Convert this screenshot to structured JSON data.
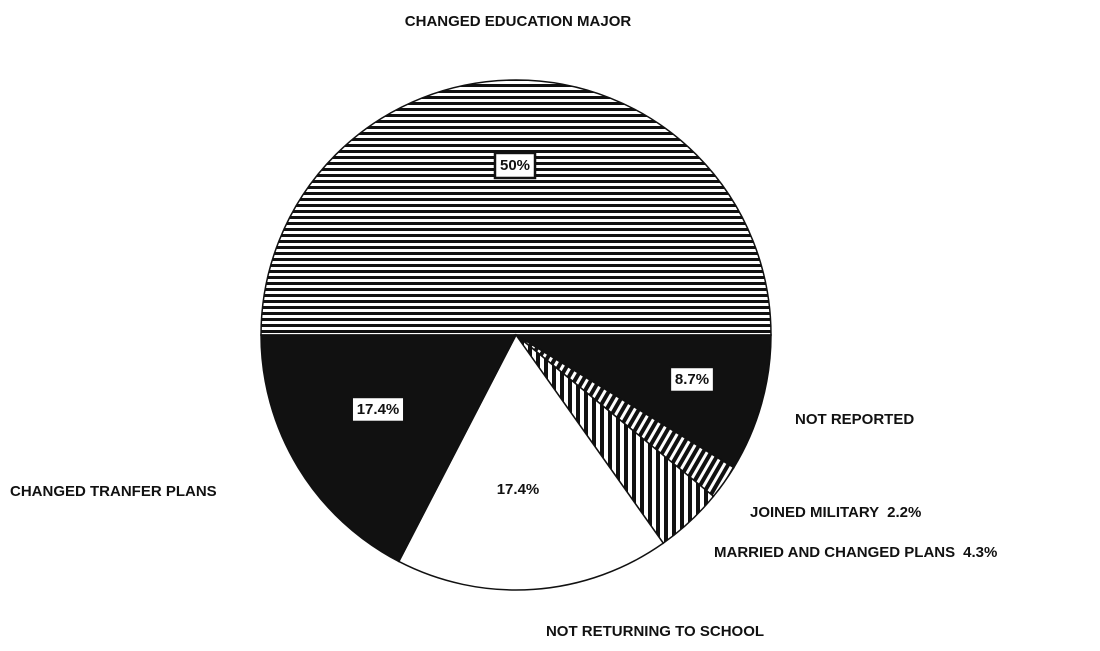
{
  "chart_data": {
    "type": "pie",
    "categories": [
      "CHANGED EDUCATION MAJOR",
      "NOT REPORTED",
      "JOINED MILITARY",
      "MARRIED AND CHANGED PLANS",
      "NOT RETURNING TO SCHOOL",
      "CHANGED TRANFER PLANS"
    ],
    "values": [
      50,
      8.7,
      2.2,
      4.3,
      17.4,
      17.4
    ],
    "value_labels": [
      "50%",
      "8.7%",
      "2.2%",
      "4.3%",
      "17.4%",
      "17.4%"
    ],
    "colors": [
      "#111111",
      "#111111",
      "#111111",
      "#111111",
      "#ffffff",
      "#111111"
    ],
    "fill_patterns": [
      "horizontal",
      "solid",
      "diagonal",
      "vertical",
      "solid",
      "solid"
    ]
  }
}
